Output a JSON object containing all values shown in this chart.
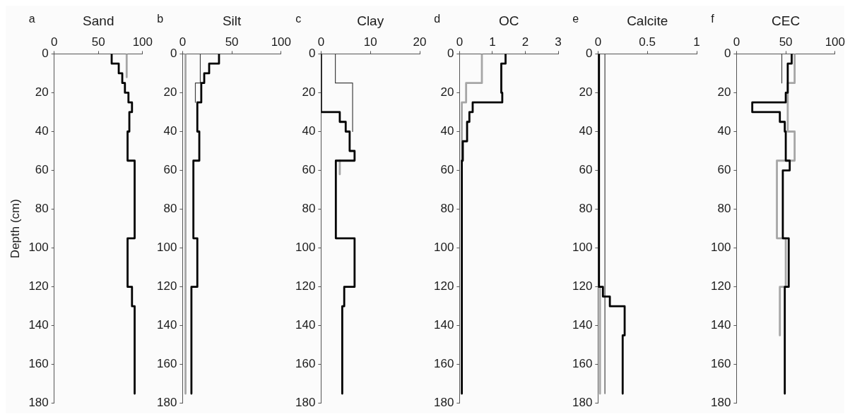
{
  "chart_data": [
    {
      "type": "line",
      "title": "Sand",
      "annotations": [
        "a"
      ],
      "ylabel": "Depth (cm)",
      "xlim": [
        0,
        100
      ],
      "xticks": [
        0,
        50,
        100
      ],
      "ylim": [
        180,
        0
      ],
      "yticks": [
        0,
        20,
        40,
        60,
        80,
        100,
        120,
        140,
        160,
        180
      ],
      "grid": false,
      "legend": false,
      "marker": "none",
      "series": [
        {
          "color": "#000000",
          "x": [
            65,
            65,
            73,
            73,
            77,
            77,
            80,
            80,
            84,
            84,
            88,
            88,
            85,
            85,
            83,
            83,
            91,
            91,
            83,
            83,
            88,
            88,
            91,
            91
          ],
          "values": [
            0,
            5,
            5,
            10,
            10,
            15,
            15,
            20,
            20,
            25,
            25,
            30,
            30,
            40,
            40,
            55,
            55,
            95,
            95,
            120,
            120,
            130,
            130,
            175
          ]
        },
        {
          "color": "#a6a6a6",
          "x": [
            82,
            82
          ],
          "values": [
            0,
            12
          ]
        }
      ]
    },
    {
      "type": "line",
      "title": "Silt",
      "annotations": [
        "b"
      ],
      "xlim": [
        0,
        100
      ],
      "xticks": [
        0,
        50,
        100
      ],
      "ylim": [
        180,
        0
      ],
      "yticks": [
        0,
        20,
        40,
        60,
        80,
        100,
        120,
        140,
        160,
        180
      ],
      "grid": false,
      "legend": false,
      "marker": "none",
      "series": [
        {
          "color": "#000000",
          "x": [
            37,
            37,
            27,
            27,
            22,
            22,
            19,
            19,
            15,
            15,
            17,
            17,
            11,
            11,
            15,
            15,
            9,
            9
          ],
          "values": [
            0,
            5,
            5,
            10,
            10,
            15,
            15,
            25,
            25,
            40,
            40,
            55,
            55,
            95,
            95,
            120,
            120,
            175
          ]
        },
        {
          "color": "#a6a6a6",
          "x": [
            3,
            3
          ],
          "values": [
            0,
            175
          ]
        },
        {
          "color": "#404040",
          "x": [
            18,
            18,
            13,
            13
          ],
          "values": [
            0,
            15,
            15,
            25
          ]
        }
      ]
    },
    {
      "type": "line",
      "title": "Clay",
      "annotations": [
        "c"
      ],
      "xlim": [
        0,
        20
      ],
      "xticks": [
        0,
        10,
        20
      ],
      "ylim": [
        180,
        0
      ],
      "yticks": [
        0,
        20,
        40,
        60,
        80,
        100,
        120,
        140,
        160,
        180
      ],
      "grid": false,
      "legend": false,
      "marker": "none",
      "series": [
        {
          "color": "#000000",
          "x": [
            0,
            0,
            3.8,
            3.8,
            5,
            5,
            5.8,
            5.8,
            6.8,
            6.8,
            3,
            3,
            6.8,
            6.8,
            4.7,
            4.7,
            4.3,
            4.3
          ],
          "values": [
            0,
            30,
            30,
            35,
            35,
            40,
            40,
            50,
            50,
            55,
            55,
            95,
            95,
            120,
            120,
            130,
            130,
            175
          ]
        },
        {
          "color": "#a6a6a6",
          "x": [
            3.8,
            3.8
          ],
          "values": [
            55,
            62
          ]
        },
        {
          "color": "#404040",
          "x": [
            2.9,
            2.9,
            6.4,
            6.4
          ],
          "values": [
            0,
            15,
            15,
            40
          ]
        }
      ]
    },
    {
      "type": "line",
      "title": "OC",
      "annotations": [
        "d"
      ],
      "xlim": [
        0,
        3
      ],
      "xticks": [
        0,
        1,
        2,
        3
      ],
      "ylim": [
        180,
        0
      ],
      "yticks": [
        0,
        20,
        40,
        60,
        80,
        100,
        120,
        140,
        160,
        180
      ],
      "grid": false,
      "legend": false,
      "marker": "none",
      "series": [
        {
          "color": "#000000",
          "x": [
            1.4,
            1.4,
            1.27,
            1.27,
            1.3,
            1.3,
            0.4,
            0.4,
            0.3,
            0.3,
            0.23,
            0.23,
            0.1,
            0.1,
            0.07,
            0.07
          ],
          "values": [
            0,
            5,
            5,
            20,
            20,
            25,
            25,
            30,
            30,
            35,
            35,
            45,
            45,
            55,
            55,
            175
          ]
        },
        {
          "color": "#a6a6a6",
          "x": [
            0.68,
            0.68,
            0.2,
            0.2,
            0.07,
            0.07
          ],
          "values": [
            0,
            15,
            15,
            25,
            25,
            55
          ]
        }
      ]
    },
    {
      "type": "line",
      "title": "Calcite",
      "annotations": [
        "e"
      ],
      "xlim": [
        0,
        1
      ],
      "xticks": [
        0,
        0.5,
        1
      ],
      "ylim": [
        180,
        0
      ],
      "yticks": [
        0,
        20,
        40,
        60,
        80,
        100,
        120,
        140,
        160,
        180
      ],
      "grid": false,
      "legend": false,
      "marker": "none",
      "series": [
        {
          "color": "#000000",
          "x": [
            0.01,
            0.01,
            0.05,
            0.05,
            0.12,
            0.12,
            0.27,
            0.27,
            0.25,
            0.25
          ],
          "values": [
            0,
            120,
            120,
            125,
            125,
            130,
            130,
            145,
            145,
            175
          ]
        },
        {
          "color": "#a6a6a6",
          "x": [
            0.02,
            0.02
          ],
          "values": [
            120,
            175
          ]
        },
        {
          "color": "#404040",
          "x": [
            0.07,
            0.07
          ],
          "values": [
            0,
            175
          ]
        }
      ]
    },
    {
      "type": "line",
      "title": "CEC",
      "annotations": [
        "f"
      ],
      "xlim": [
        0,
        100
      ],
      "xticks": [
        0,
        50,
        100
      ],
      "ylim": [
        180,
        0
      ],
      "yticks": [
        0,
        20,
        40,
        60,
        80,
        100,
        120,
        140,
        160,
        180
      ],
      "grid": false,
      "legend": false,
      "marker": "none",
      "series": [
        {
          "color": "#000000",
          "x": [
            56,
            56,
            52,
            52,
            50,
            50,
            16,
            16,
            44,
            44,
            49,
            49,
            50,
            50,
            54,
            54,
            47,
            47,
            53,
            53,
            49,
            49
          ],
          "values": [
            0,
            5,
            5,
            20,
            20,
            25,
            25,
            30,
            30,
            35,
            35,
            40,
            40,
            55,
            55,
            60,
            60,
            95,
            95,
            120,
            120,
            175
          ]
        },
        {
          "color": "#a6a6a6",
          "x": [
            59,
            59,
            52,
            52,
            59,
            59,
            41,
            41,
            50,
            50,
            44,
            44
          ],
          "values": [
            0,
            15,
            15,
            40,
            40,
            55,
            55,
            95,
            95,
            120,
            120,
            145
          ]
        },
        {
          "color": "#404040",
          "x": [
            46,
            46
          ],
          "values": [
            0,
            15
          ]
        }
      ]
    }
  ]
}
